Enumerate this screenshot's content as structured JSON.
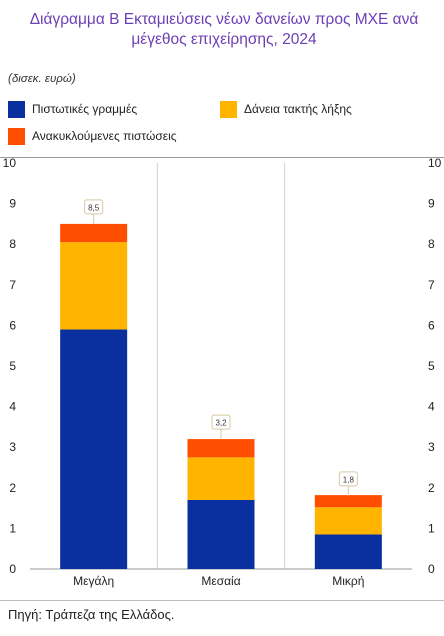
{
  "title": "Διάγραμμα Β Εκταμιεύσεις νέων δανείων προς ΜΧΕ ανά μέγεθος επιχείρησης, 2024",
  "units": "(δισεκ. ευρώ)",
  "source": "Πηγή: Τράπεζα της Ελλάδος.",
  "colors": {
    "title": "#6c3fb5",
    "series_1": "#0a2f9e",
    "series_2": "#ffb400",
    "series_3": "#ff4e00"
  },
  "chart_data": {
    "type": "bar",
    "stacked": true,
    "categories": [
      "Μεγάλη",
      "Μεσαία",
      "Μικρή"
    ],
    "series": [
      {
        "name": "Πιστωτικές γραμμές",
        "values": [
          5.9,
          1.7,
          0.85
        ],
        "color": "#0a2f9e"
      },
      {
        "name": "Δάνεια τακτής λήξης",
        "values": [
          2.15,
          1.05,
          0.67
        ],
        "color": "#ffb400"
      },
      {
        "name": "Ανακυκλούμενες πιστώσεις",
        "values": [
          0.45,
          0.45,
          0.3
        ],
        "color": "#ff4e00"
      }
    ],
    "totals": [
      8.5,
      3.2,
      1.8
    ],
    "total_labels": [
      "8,5",
      "3,2",
      "1,8"
    ],
    "ylim": [
      0,
      10
    ],
    "yticks": [
      "0",
      "1",
      "2",
      "3",
      "4",
      "5",
      "6",
      "7",
      "8",
      "9",
      "10"
    ],
    "grid": true,
    "legend_position": "top"
  }
}
